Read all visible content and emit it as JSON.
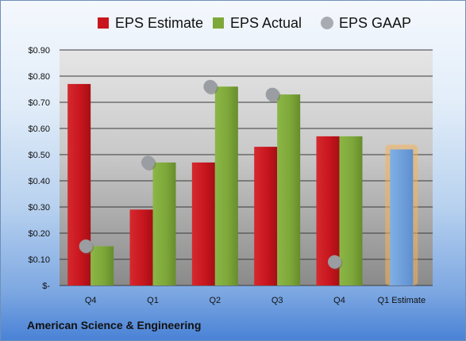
{
  "footer": {
    "company": "American Science & Engineering"
  },
  "chart_data": {
    "type": "bar",
    "categories": [
      "Q4",
      "Q1",
      "Q2",
      "Q3",
      "Q4",
      "Q1 Estimate"
    ],
    "series": [
      {
        "name": "EPS Estimate",
        "values": [
          0.77,
          0.29,
          0.47,
          0.53,
          0.57,
          null
        ],
        "color": "#c9161e"
      },
      {
        "name": "EPS Actual",
        "values": [
          0.15,
          0.47,
          0.76,
          0.73,
          0.57,
          null
        ],
        "color": "#7ea83a"
      },
      {
        "name": "EPS GAAP",
        "type": "scatter",
        "values": [
          0.15,
          0.47,
          0.76,
          0.73,
          0.09,
          null
        ],
        "color": "#a8acb2"
      },
      {
        "name": "Q1 Estimate",
        "values": [
          null,
          null,
          null,
          null,
          null,
          0.52
        ],
        "color": "#6f9fd8",
        "highlight": "#f5b25a"
      }
    ],
    "ylim": [
      0,
      0.9
    ],
    "yticks": [
      0,
      0.1,
      0.2,
      0.3,
      0.4,
      0.5,
      0.6,
      0.7,
      0.8,
      0.9
    ],
    "ytick_labels": [
      "$-",
      "$0.10",
      "$0.20",
      "$0.30",
      "$0.40",
      "$0.50",
      "$0.60",
      "$0.70",
      "$0.80",
      "$0.90"
    ],
    "grid": true,
    "legend": {
      "position": "top",
      "entries": [
        {
          "label": "EPS Estimate",
          "color": "#c9161e",
          "marker": "square"
        },
        {
          "label": "EPS Actual",
          "color": "#7ea83a",
          "marker": "square"
        },
        {
          "label": "EPS GAAP",
          "color": "#a8acb2",
          "marker": "circle"
        }
      ]
    }
  }
}
